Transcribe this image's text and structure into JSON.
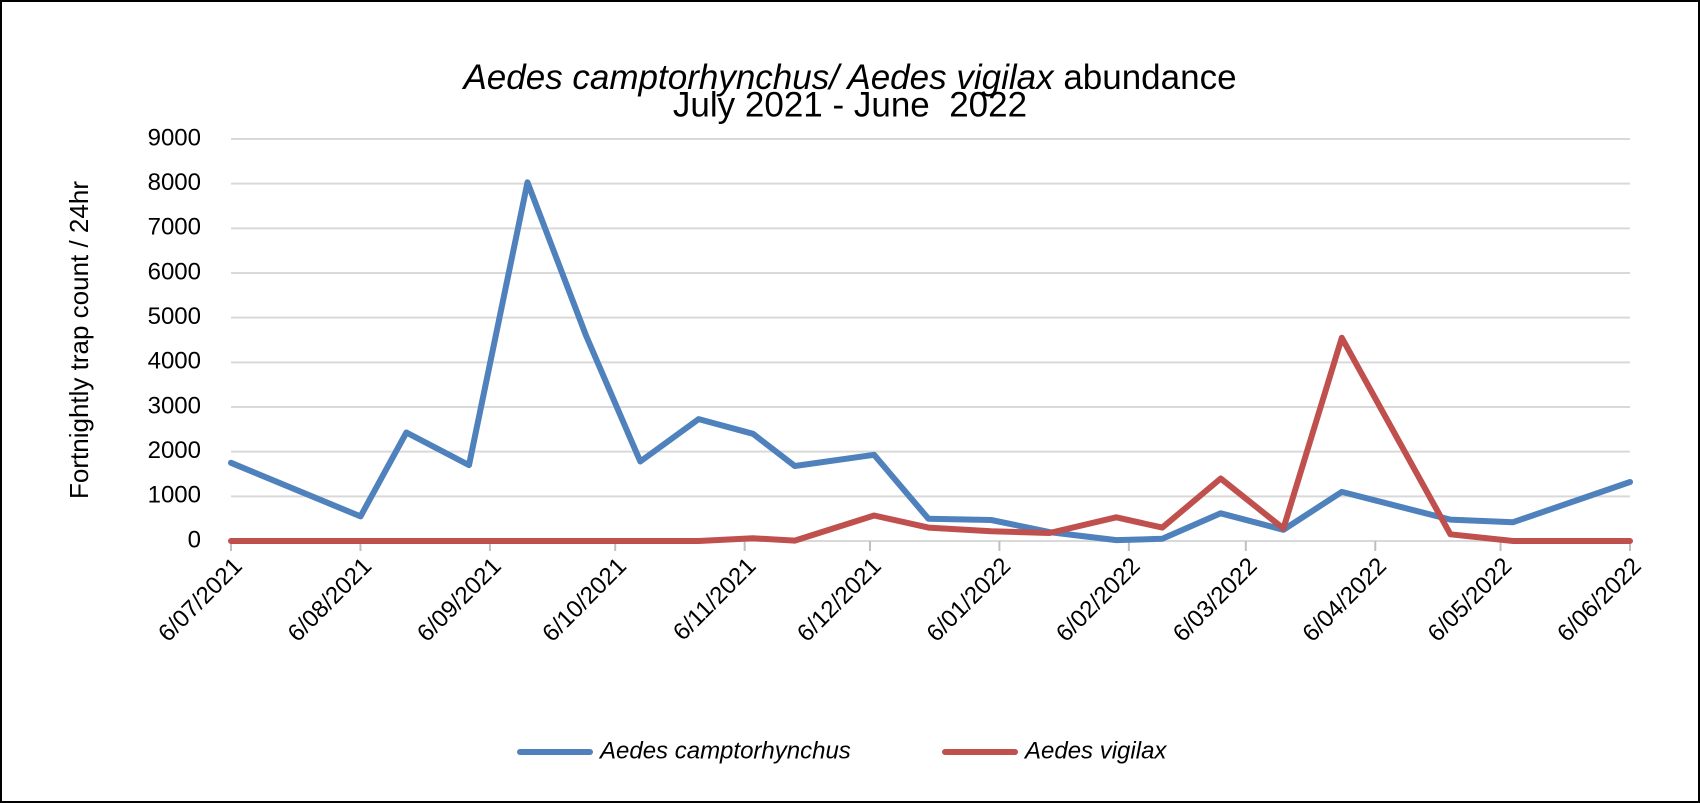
{
  "chart_data": {
    "type": "line",
    "title": [
      {
        "text": "Aedes camptorhynchus/ Aedes vigilax",
        "italic": true
      },
      {
        "text": " abundance",
        "italic": false
      }
    ],
    "subtitle": "July 2021 - June  2022",
    "ylabel": "Fortnightly trap count / 24hr",
    "x": [
      "2021-07-06",
      "2021-08-06",
      "2021-08-17",
      "2021-09-01",
      "2021-09-15",
      "2021-09-29",
      "2021-10-12",
      "2021-10-26",
      "2021-11-08",
      "2021-11-18",
      "2021-12-07",
      "2021-12-20",
      "2022-01-04",
      "2022-01-18",
      "2022-02-03",
      "2022-02-14",
      "2022-02-28",
      "2022-03-15",
      "2022-03-29",
      "2022-04-24",
      "2022-05-09",
      "2022-06-06"
    ],
    "series": [
      {
        "name": "Aedes camptorhynchus",
        "color": "#4f81bd",
        "values": [
          1750,
          550,
          2430,
          1700,
          8030,
          4600,
          1780,
          2730,
          2400,
          1680,
          1930,
          500,
          470,
          200,
          20,
          50,
          620,
          250,
          1100,
          480,
          420,
          1320
        ]
      },
      {
        "name": "Aedes vigilax",
        "color": "#c0504d",
        "values": [
          0,
          0,
          0,
          0,
          0,
          0,
          0,
          0,
          60,
          10,
          570,
          300,
          220,
          180,
          530,
          300,
          1400,
          280,
          4550,
          150,
          0,
          0
        ]
      }
    ],
    "xlim": [
      "2021-07-06",
      "2022-06-06"
    ],
    "xticks": [
      {
        "value": "2021-07-06",
        "label": "6/07/2021"
      },
      {
        "value": "2021-08-06",
        "label": "6/08/2021"
      },
      {
        "value": "2021-09-06",
        "label": "6/09/2021"
      },
      {
        "value": "2021-10-06",
        "label": "6/10/2021"
      },
      {
        "value": "2021-11-06",
        "label": "6/11/2021"
      },
      {
        "value": "2021-12-06",
        "label": "6/12/2021"
      },
      {
        "value": "2022-01-06",
        "label": "6/01/2022"
      },
      {
        "value": "2022-02-06",
        "label": "6/02/2022"
      },
      {
        "value": "2022-03-06",
        "label": "6/03/2022"
      },
      {
        "value": "2022-04-06",
        "label": "6/04/2022"
      },
      {
        "value": "2022-05-06",
        "label": "6/05/2022"
      },
      {
        "value": "2022-06-06",
        "label": "6/06/2022"
      }
    ],
    "ylim": [
      0,
      9000
    ],
    "yticks": [
      0,
      1000,
      2000,
      3000,
      4000,
      5000,
      6000,
      7000,
      8000,
      9000
    ],
    "grid": true,
    "legend": "bottom"
  }
}
